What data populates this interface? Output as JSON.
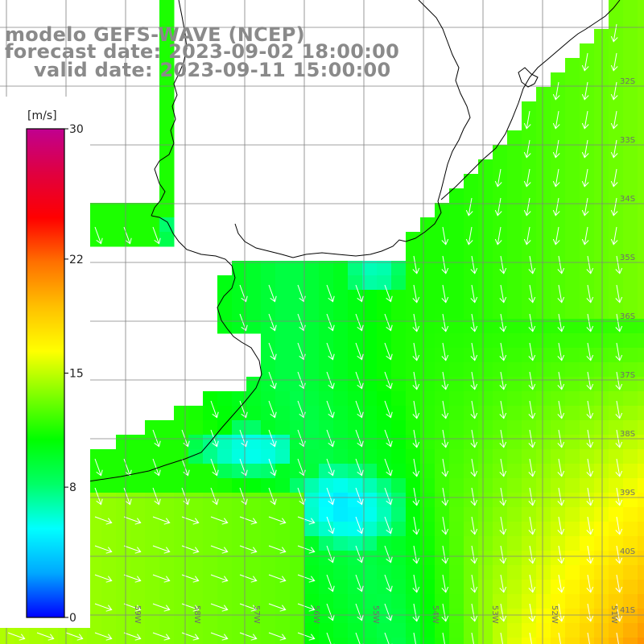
{
  "title": {
    "model": "modelo GEFS-WAVE (NCEP)",
    "forecast": "forecast date: 2023-09-02 18:00:00",
    "valid": "valid date: 2023-09-11 15:00:00"
  },
  "colorbar": {
    "unit": "[m/s]",
    "ticks": [
      {
        "value": 30,
        "label": "30"
      },
      {
        "value": 22,
        "label": "22"
      },
      {
        "value": 15,
        "label": "15"
      },
      {
        "value": 8,
        "label": "8"
      },
      {
        "value": 0,
        "label": "0"
      }
    ],
    "min": 0,
    "max": 30,
    "colors": [
      "#0000ff",
      "#00a8ff",
      "#00ffff",
      "#00ff66",
      "#00ff00",
      "#80ff00",
      "#ffff00",
      "#ffc000",
      "#ff7000",
      "#ff0000",
      "#e00040",
      "#c00090"
    ]
  },
  "grid": {
    "lat_labels": [
      "32S",
      "33S",
      "34S",
      "35S",
      "36S",
      "37S",
      "38S",
      "39S",
      "40S",
      "41S"
    ],
    "lon_labels": [
      "61W",
      "60W",
      "59W",
      "58W",
      "57W",
      "56W",
      "55W",
      "54W",
      "53W",
      "52W",
      "51W"
    ]
  },
  "colors": {
    "land": "#ffffff",
    "coast": "#000000",
    "grid": "#808080",
    "arrows": "#ffffff",
    "title": "#8a8a8a"
  }
}
